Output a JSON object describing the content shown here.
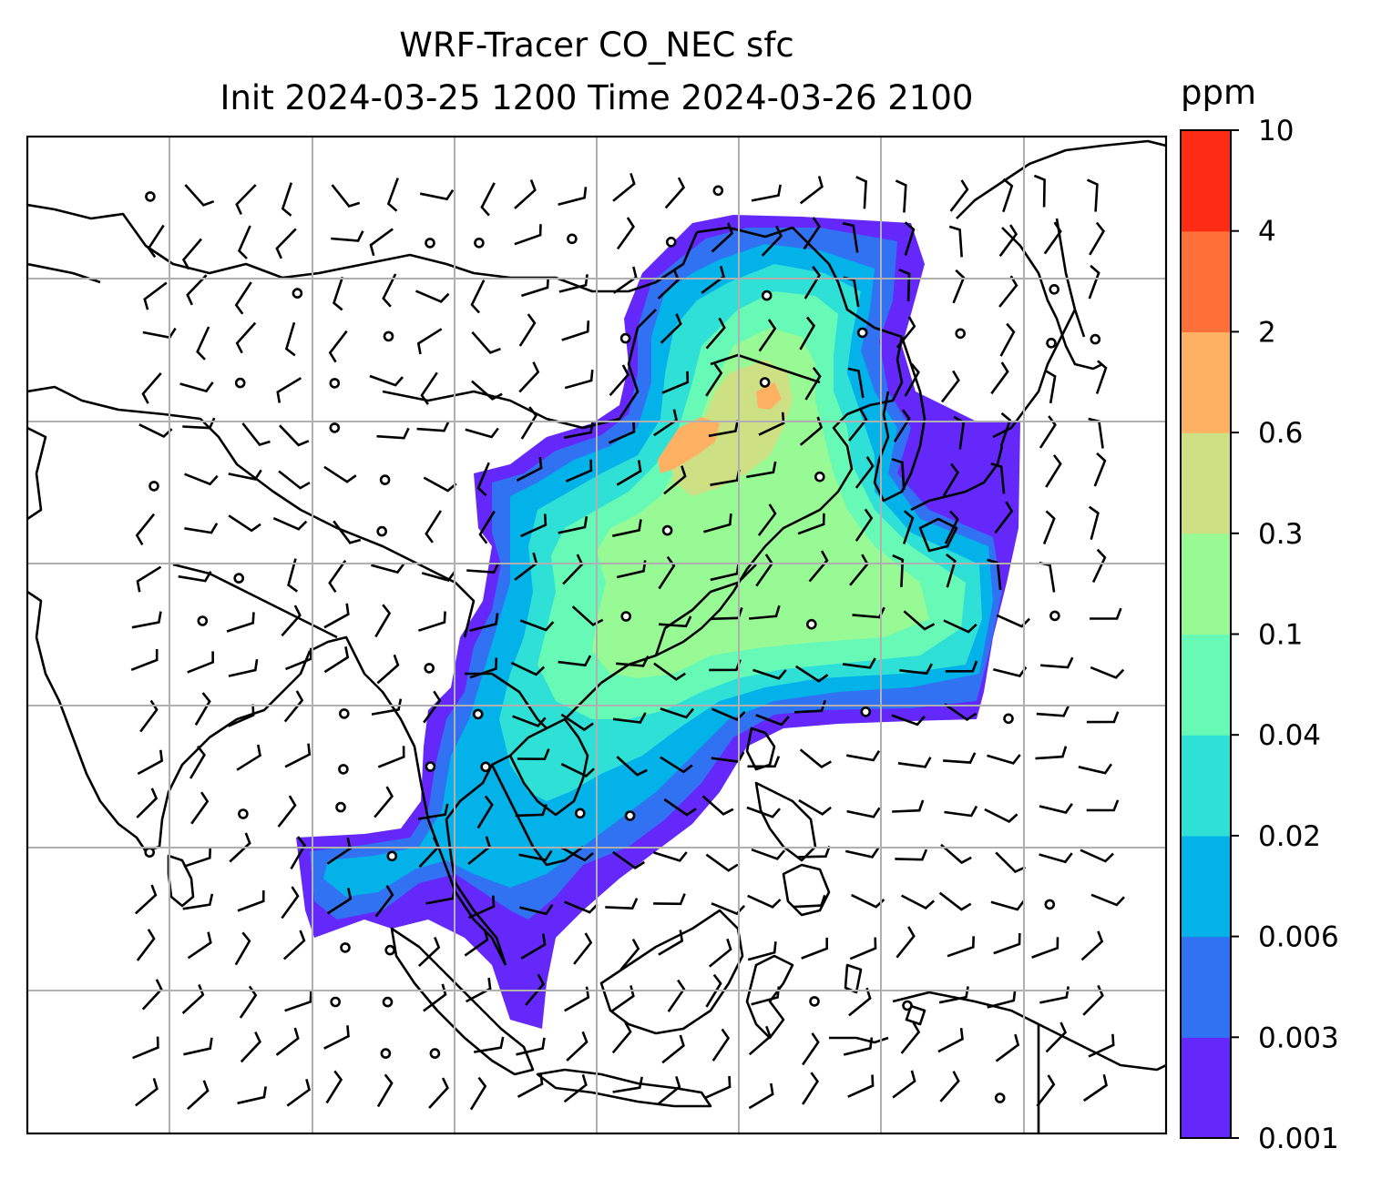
{
  "title": {
    "line1": "WRF-Tracer CO_NEC sfc",
    "line2": "Init 2024-03-25 1200 Time 2024-03-26 2100"
  },
  "colorbar": {
    "unit": "ppm",
    "ticks": [
      "0.001",
      "0.003",
      "0.006",
      "0.02",
      "0.04",
      "0.1",
      "0.3",
      "0.6",
      "2",
      "4",
      "10"
    ],
    "colors": [
      "#6428fa",
      "#3072f2",
      "#04b2ea",
      "#2fe0d6",
      "#66fab6",
      "#98fa94",
      "#cde184",
      "#feb162",
      "#fe7038",
      "#fe2b15"
    ]
  },
  "map": {
    "grid_color": "#b0b0b0",
    "coastline_color": "#000000",
    "field_colors": {
      "level1": "#6428fa",
      "level2": "#3072f2",
      "level3": "#04b2ea",
      "level4": "#2fe0d6",
      "level5": "#66fab6",
      "level6": "#98fa94",
      "level7": "#cde184",
      "level8": "#feb162"
    }
  }
}
